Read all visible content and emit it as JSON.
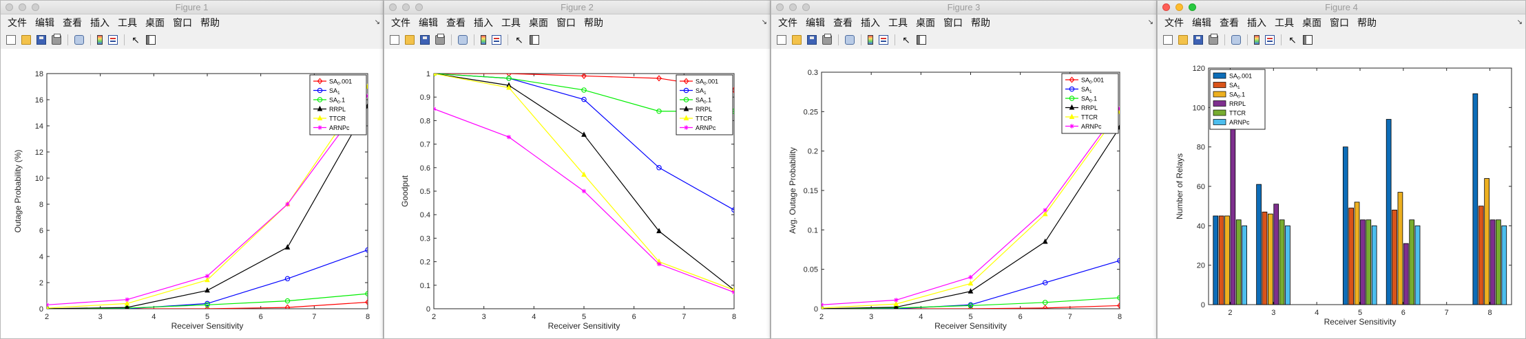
{
  "menu": [
    "文件",
    "编辑",
    "查看",
    "插入",
    "工具",
    "桌面",
    "窗口",
    "帮助"
  ],
  "legend_labels": {
    "sa_001": {
      "base": "SA",
      "sub": "0",
      "suffix": ".001"
    },
    "sa_1": {
      "base": "SA",
      "sub": "1",
      "suffix": ""
    },
    "sa_01": {
      "base": "SA",
      "sub": "0",
      "suffix": ".1"
    },
    "rrpl": {
      "base": "RRPL",
      "sub": "",
      "suffix": ""
    },
    "ttcr": {
      "base": "TTCR",
      "sub": "",
      "suffix": ""
    },
    "arnpc": {
      "base": "ARNPc",
      "sub": "",
      "suffix": ""
    }
  },
  "windows": [
    {
      "title": "Figure 1",
      "chart_data": {
        "type": "line",
        "xlabel": "Receiver Sensitivity",
        "ylabel": "Outage Probability (%)",
        "xlim": [
          2,
          8
        ],
        "ylim": [
          0,
          18
        ],
        "xticks": [
          2,
          3,
          4,
          5,
          6,
          7,
          8
        ],
        "yticks": [
          0,
          2,
          4,
          6,
          8,
          10,
          12,
          14,
          16,
          18
        ],
        "legend_position": "top-right",
        "x": [
          2,
          3.5,
          5,
          6.5,
          8
        ],
        "series": [
          {
            "key": "sa_001",
            "color": "#ff0000",
            "marker": "diamond",
            "values": [
              0,
              0,
              0,
              0.1,
              0.5
            ]
          },
          {
            "key": "sa_1",
            "color": "#0000ff",
            "marker": "circle",
            "values": [
              0,
              0,
              0.4,
              2.3,
              4.5
            ]
          },
          {
            "key": "sa_01",
            "color": "#00ee00",
            "marker": "circle",
            "values": [
              0,
              0.05,
              0.3,
              0.6,
              1.15
            ]
          },
          {
            "key": "rrpl",
            "color": "#000000",
            "marker": "triangle",
            "values": [
              0,
              0.1,
              1.4,
              4.7,
              15.5
            ]
          },
          {
            "key": "ttcr",
            "color": "#ffff00",
            "marker": "triangle",
            "values": [
              0.05,
              0.4,
              2.2,
              8,
              17
            ]
          },
          {
            "key": "arnpc",
            "color": "#ff00ff",
            "marker": "star",
            "values": [
              0.3,
              0.7,
              2.5,
              8,
              16.3
            ]
          }
        ]
      }
    },
    {
      "title": "Figure 2",
      "chart_data": {
        "type": "line",
        "xlabel": "Receiver Sensitivity",
        "ylabel": "Goodput",
        "xlim": [
          2,
          8
        ],
        "ylim": [
          0,
          1
        ],
        "xticks": [
          2,
          3,
          4,
          5,
          6,
          7,
          8
        ],
        "yticks": [
          0,
          0.1,
          0.2,
          0.3,
          0.4,
          0.5,
          0.6,
          0.7,
          0.8,
          0.9,
          1
        ],
        "legend_position": "top-right",
        "x": [
          2,
          3.5,
          5,
          6.5,
          8
        ],
        "series": [
          {
            "key": "sa_001",
            "color": "#ff0000",
            "marker": "diamond",
            "values": [
              1,
              1,
              0.99,
              0.98,
              0.93
            ]
          },
          {
            "key": "sa_1",
            "color": "#0000ff",
            "marker": "circle",
            "values": [
              1,
              0.98,
              0.89,
              0.6,
              0.42
            ]
          },
          {
            "key": "sa_01",
            "color": "#00ee00",
            "marker": "circle",
            "values": [
              1,
              0.98,
              0.93,
              0.84,
              0.84
            ]
          },
          {
            "key": "rrpl",
            "color": "#000000",
            "marker": "triangle",
            "values": [
              1,
              0.95,
              0.74,
              0.33,
              0.08
            ]
          },
          {
            "key": "ttcr",
            "color": "#ffff00",
            "marker": "triangle",
            "values": [
              1,
              0.94,
              0.57,
              0.2,
              0.08
            ]
          },
          {
            "key": "arnpc",
            "color": "#ff00ff",
            "marker": "star",
            "values": [
              0.85,
              0.73,
              0.5,
              0.19,
              0.07
            ]
          }
        ]
      }
    },
    {
      "title": "Figure 3",
      "chart_data": {
        "type": "line",
        "xlabel": "Receiver Sensitivity",
        "ylabel": "Avg. Outage Probability",
        "xlim": [
          2,
          8
        ],
        "ylim": [
          0,
          0.3
        ],
        "xticks": [
          2,
          3,
          4,
          5,
          6,
          7,
          8
        ],
        "yticks": [
          0,
          0.05,
          0.1,
          0.15,
          0.2,
          0.25,
          0.3
        ],
        "legend_position": "top-right",
        "x": [
          2,
          3.5,
          5,
          6.5,
          8
        ],
        "series": [
          {
            "key": "sa_001",
            "color": "#ff0000",
            "marker": "diamond",
            "values": [
              0,
              0,
              0,
              0.001,
              0.004
            ]
          },
          {
            "key": "sa_1",
            "color": "#0000ff",
            "marker": "circle",
            "values": [
              0,
              0,
              0.005,
              0.033,
              0.061
            ]
          },
          {
            "key": "sa_01",
            "color": "#00ee00",
            "marker": "circle",
            "values": [
              0,
              0.001,
              0.004,
              0.008,
              0.014
            ]
          },
          {
            "key": "rrpl",
            "color": "#000000",
            "marker": "triangle",
            "values": [
              0,
              0.002,
              0.022,
              0.085,
              0.23
            ]
          },
          {
            "key": "ttcr",
            "color": "#ffff00",
            "marker": "triangle",
            "values": [
              0.001,
              0.006,
              0.032,
              0.12,
              0.25
            ]
          },
          {
            "key": "arnpc",
            "color": "#ff00ff",
            "marker": "star",
            "values": [
              0.005,
              0.011,
              0.04,
              0.125,
              0.254
            ]
          }
        ]
      }
    },
    {
      "title": "Figure 4",
      "chart_data": {
        "type": "bar",
        "xlabel": "Receiver Sensitivity",
        "ylabel": "Number of Relays",
        "ylim": [
          0,
          120
        ],
        "yticks": [
          0,
          20,
          40,
          60,
          80,
          100,
          120
        ],
        "legend_position": "top-left",
        "categories": [
          "2",
          "3",
          "4",
          "5",
          "6",
          "7",
          "8"
        ],
        "xtick_labels": [
          "2",
          "3",
          "4",
          "5",
          "6",
          "7",
          "8"
        ],
        "series": [
          {
            "key": "sa_001",
            "color": "#0d6db8",
            "values": [
              45,
              61,
              null,
              80,
              94,
              null,
              107
            ]
          },
          {
            "key": "sa_1",
            "color": "#d9541a",
            "values": [
              45,
              47,
              null,
              49,
              48,
              null,
              50
            ]
          },
          {
            "key": "sa_01",
            "color": "#edb020",
            "values": [
              45,
              46,
              null,
              52,
              57,
              null,
              64
            ]
          },
          {
            "key": "rrpl",
            "color": "#7e2f8e",
            "values": [
              90,
              51,
              null,
              43,
              31,
              null,
              43
            ]
          },
          {
            "key": "ttcr",
            "color": "#77ac30",
            "values": [
              43,
              43,
              null,
              43,
              43,
              null,
              43
            ]
          },
          {
            "key": "arnpc",
            "color": "#4dbeee",
            "values": [
              40,
              40,
              null,
              40,
              40,
              null,
              40
            ]
          }
        ]
      }
    }
  ]
}
